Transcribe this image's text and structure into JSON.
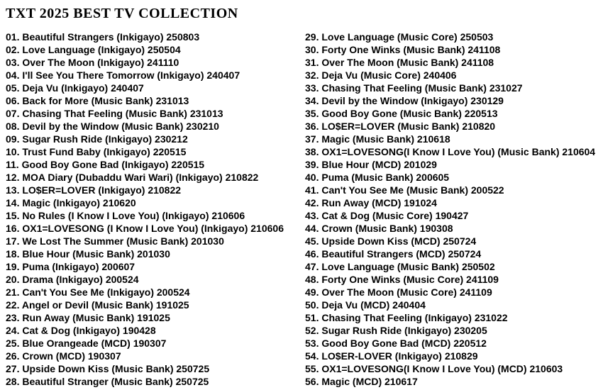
{
  "page": {
    "background_color": "#ffffff",
    "text_color": "#000000"
  },
  "title": "TXT 2025 BEST TV COLLECTION",
  "list": {
    "columns": [
      {
        "entries": [
          {
            "num": "01",
            "song": "Beautiful Strangers",
            "show": "Inkigayo",
            "date": "250803"
          },
          {
            "num": "02",
            "song": "Love Language",
            "show": "Inkigayo",
            "date": "250504"
          },
          {
            "num": "03",
            "song": "Over The Moon",
            "show": "Inkigayo",
            "date": "241110"
          },
          {
            "num": "04",
            "song": "I'll See You There Tomorrow",
            "show": "Inkigayo",
            "date": "240407"
          },
          {
            "num": "05",
            "song": "Deja Vu",
            "show": "Inkigayo",
            "date": "240407"
          },
          {
            "num": "06",
            "song": "Back for More",
            "show": "Music Bank",
            "date": "231013"
          },
          {
            "num": "07",
            "song": "Chasing That Feeling",
            "show": "Music Bank",
            "date": "231013"
          },
          {
            "num": "08",
            "song": "Devil by the Window",
            "show": "Music Bank",
            "date": "230210"
          },
          {
            "num": "09",
            "song": "Sugar Rush Ride",
            "show": "Inkigayo",
            "date": "230212"
          },
          {
            "num": "10",
            "song": "Trust Fund Baby",
            "show": "Inkigayo",
            "date": "220515"
          },
          {
            "num": "11",
            "song": "Good Boy Gone Bad",
            "show": "Inkigayo",
            "date": "220515"
          },
          {
            "num": "12",
            "song": "MOA Diary (Dubaddu Wari Wari)",
            "show": "Inkigayo",
            "date": "210822"
          },
          {
            "num": "13",
            "song": "LO$ER=LOVER",
            "show": "Inkigayo",
            "date": "210822"
          },
          {
            "num": "14",
            "song": "Magic",
            "show": "Inkigayo",
            "date": "210620"
          },
          {
            "num": "15",
            "song": "No Rules (I Know I Love You)",
            "show": "Inkigayo",
            "date": "210606"
          },
          {
            "num": "16",
            "song": "OX1=LOVESONG (I Know I Love You)",
            "show": "Inkigayo",
            "date": "210606"
          },
          {
            "num": "17",
            "song": "We Lost The Summer",
            "show": "Music Bank",
            "date": "201030"
          },
          {
            "num": "18",
            "song": "Blue Hour",
            "show": "Music Bank",
            "date": "201030"
          },
          {
            "num": "19",
            "song": "Puma",
            "show": "Inkigayo",
            "date": "200607"
          },
          {
            "num": "20",
            "song": "Drama",
            "show": "Inkigayo",
            "date": "200524"
          },
          {
            "num": "21",
            "song": "Can't You See Me",
            "show": "Inkigayo",
            "date": "200524"
          },
          {
            "num": "22",
            "song": "Angel or Devil",
            "show": "Music Bank",
            "date": "191025"
          },
          {
            "num": "23",
            "song": "Run Away",
            "show": "Music Bank",
            "date": "191025"
          },
          {
            "num": "24",
            "song": "Cat & Dog",
            "show": "Inkigayo",
            "date": "190428"
          },
          {
            "num": "25",
            "song": "Blue Orangeade",
            "show": "MCD",
            "date": "190307"
          },
          {
            "num": "26",
            "song": "Crown",
            "show": "MCD",
            "date": "190307"
          },
          {
            "num": "27",
            "song": "Upside Down Kiss",
            "show": "Music Bank",
            "date": "250725"
          },
          {
            "num": "28",
            "song": "Beautiful Stranger",
            "show": "Music Bank",
            "date": "250725"
          }
        ]
      },
      {
        "entries": [
          {
            "num": "29",
            "song": "Love Language",
            "show": "Music Core",
            "date": "250503"
          },
          {
            "num": "30",
            "song": "Forty One Winks",
            "show": "Music Bank",
            "date": "241108"
          },
          {
            "num": "31",
            "song": "Over The Moon",
            "show": "Music Bank",
            "date": "241108"
          },
          {
            "num": "32",
            "song": "Deja Vu",
            "show": "Music Core",
            "date": "240406"
          },
          {
            "num": "33",
            "song": "Chasing That Feeling",
            "show": "Music Bank",
            "date": "231027"
          },
          {
            "num": "34",
            "song": "Devil by the Window",
            "show": "Inkigayo",
            "date": "230129"
          },
          {
            "num": "35",
            "song": "Good Boy Gone",
            "show": "Music Bank",
            "date": "220513"
          },
          {
            "num": "36",
            "song": "LO$ER=LOVER",
            "show": "Music Bank",
            "date": "210820"
          },
          {
            "num": "37",
            "song": "Magic",
            "show": "Music Bank",
            "date": "210618"
          },
          {
            "num": "38",
            "song": "OX1=LOVESONG(I Know I Love You)",
            "show": "Music Bank",
            "date": "210604"
          },
          {
            "num": "39",
            "song": "Blue Hour",
            "show": "MCD",
            "date": "201029"
          },
          {
            "num": "40",
            "song": "Puma",
            "show": "Music Bank",
            "date": "200605"
          },
          {
            "num": "41",
            "song": "Can't You See Me",
            "show": "Music Bank",
            "date": "200522"
          },
          {
            "num": "42",
            "song": "Run Away",
            "show": "MCD",
            "date": "191024"
          },
          {
            "num": "43",
            "song": "Cat & Dog",
            "show": "Music Core",
            "date": "190427"
          },
          {
            "num": "44",
            "song": "Crown",
            "show": "Music Bank",
            "date": "190308"
          },
          {
            "num": "45",
            "song": "Upside Down Kiss",
            "show": "MCD",
            "date": "250724"
          },
          {
            "num": "46",
            "song": "Beautiful Strangers",
            "show": "MCD",
            "date": "250724"
          },
          {
            "num": "47",
            "song": "Love Language",
            "show": "Music Bank",
            "date": "250502"
          },
          {
            "num": "48",
            "song": "Forty One Winks",
            "show": "Music Core",
            "date": "241109"
          },
          {
            "num": "49",
            "song": "Over The Moon",
            "show": "Music Core",
            "date": "241109"
          },
          {
            "num": "50",
            "song": "Deja Vu",
            "show": "MCD",
            "date": "240404"
          },
          {
            "num": "51",
            "song": "Chasing That Feeling",
            "show": "Inkigayo",
            "date": "231022"
          },
          {
            "num": "52",
            "song": "Sugar Rush Ride",
            "show": "Inkigayo",
            "date": "230205"
          },
          {
            "num": "53",
            "song": "Good Boy Gone Bad",
            "show": "MCD",
            "date": "220512"
          },
          {
            "num": "54",
            "song": "LO$ER-LOVER",
            "show": "Inkigayo",
            "date": "210829"
          },
          {
            "num": "55",
            "song": "OX1=LOVESONG(I Know I Love You)",
            "show": "MCD",
            "date": "210603"
          },
          {
            "num": "56",
            "song": "Magic",
            "show": "MCD",
            "date": "210617"
          }
        ]
      }
    ]
  }
}
